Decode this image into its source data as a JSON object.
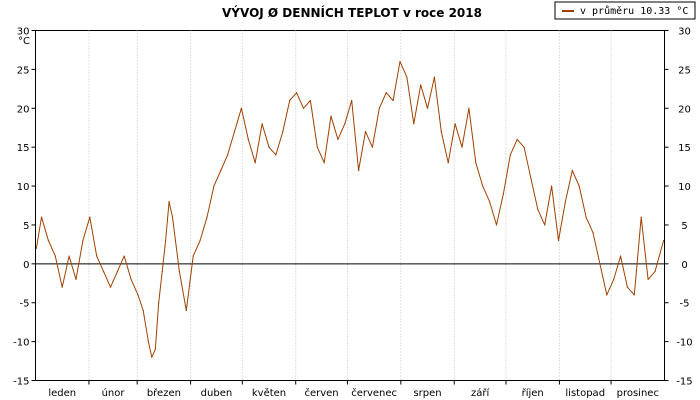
{
  "chart_data": {
    "type": "line",
    "title": "VÝVOJ Ø DENNÍCH TEPLOT v roce 2018",
    "unit": "°C",
    "ylim": [
      -15,
      30
    ],
    "y_ticks": [
      30,
      25,
      20,
      15,
      10,
      5,
      0,
      -5,
      -10,
      -15
    ],
    "grid": {
      "vertical": true,
      "horizontal": false,
      "style": "dotted"
    },
    "legend": {
      "position": "top-right",
      "label": "v průměru 10.33 °C"
    },
    "x_categories": [
      "leden",
      "únor",
      "březen",
      "duben",
      "květen",
      "červen",
      "červenec",
      "srpen",
      "září",
      "říjen",
      "listopad",
      "prosinec"
    ],
    "days_in_year": 365,
    "series": [
      {
        "name": "v průměru 10.33 °C",
        "color": "#a04000",
        "x": [
          1,
          4,
          8,
          12,
          16,
          20,
          24,
          28,
          32,
          36,
          40,
          44,
          48,
          52,
          56,
          60,
          63,
          66,
          68,
          70,
          72,
          74,
          76,
          78,
          80,
          84,
          88,
          92,
          96,
          100,
          104,
          108,
          112,
          116,
          120,
          124,
          128,
          132,
          136,
          140,
          144,
          148,
          152,
          156,
          160,
          164,
          168,
          172,
          176,
          180,
          184,
          188,
          192,
          196,
          200,
          204,
          208,
          212,
          216,
          220,
          224,
          228,
          232,
          236,
          240,
          244,
          248,
          252,
          256,
          260,
          264,
          268,
          272,
          276,
          280,
          284,
          288,
          292,
          296,
          300,
          304,
          308,
          312,
          316,
          320,
          324,
          328,
          332,
          336,
          340,
          344,
          348,
          352,
          356,
          360,
          365
        ],
        "y": [
          2,
          6,
          3,
          1,
          -3,
          1,
          -2,
          3,
          6,
          1,
          -1,
          -3,
          -1,
          1,
          -2,
          -4,
          -6,
          -10,
          -12,
          -11,
          -5,
          -1,
          3,
          8,
          6,
          -1,
          -6,
          1,
          3,
          6,
          10,
          12,
          14,
          17,
          20,
          16,
          13,
          18,
          15,
          14,
          17,
          21,
          22,
          20,
          21,
          15,
          13,
          19,
          16,
          18,
          21,
          12,
          17,
          15,
          20,
          22,
          21,
          26,
          24,
          18,
          23,
          20,
          24,
          17,
          13,
          18,
          15,
          20,
          13,
          10,
          8,
          5,
          9,
          14,
          16,
          15,
          11,
          7,
          5,
          10,
          3,
          8,
          12,
          10,
          6,
          4,
          0,
          -4,
          -2,
          1,
          -3,
          -4,
          6,
          -2,
          -1,
          3
        ]
      }
    ]
  }
}
